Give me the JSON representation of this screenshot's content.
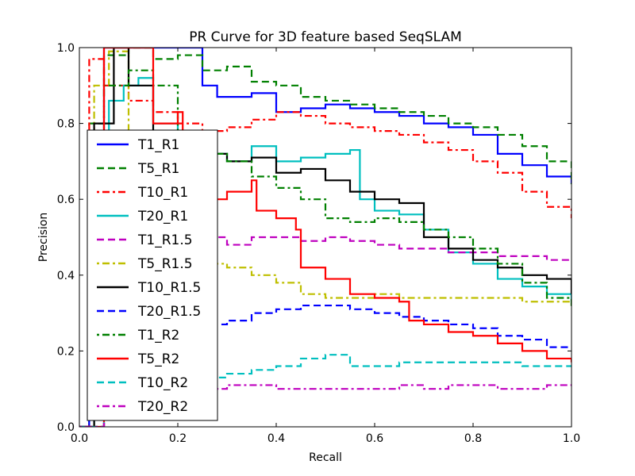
{
  "chart_data": {
    "type": "line",
    "title": "PR Curve for 3D feature based SeqSLAM",
    "xlabel": "Recall",
    "ylabel": "Precision",
    "xlim": [
      0,
      1
    ],
    "ylim": [
      0,
      1
    ],
    "xticks": [
      "0.0",
      "0.2",
      "0.4",
      "0.6",
      "0.8",
      "1.0"
    ],
    "yticks": [
      "0.0",
      "0.2",
      "0.4",
      "0.6",
      "0.8",
      "1.0"
    ],
    "grid": false,
    "legend_position": "left",
    "series": [
      {
        "name": "T1_R1",
        "color": "#0000ff",
        "dash": "solid",
        "x": [
          0.0,
          0.02,
          0.05,
          0.08,
          0.12,
          0.18,
          0.2,
          0.22,
          0.25,
          0.28,
          0.3,
          0.35,
          0.4,
          0.45,
          0.5,
          0.55,
          0.6,
          0.65,
          0.7,
          0.75,
          0.8,
          0.85,
          0.9,
          0.95,
          1.0
        ],
        "y": [
          0.0,
          0.7,
          1.0,
          1.0,
          1.0,
          1.0,
          1.0,
          1.0,
          0.9,
          0.87,
          0.87,
          0.88,
          0.83,
          0.84,
          0.85,
          0.84,
          0.83,
          0.82,
          0.8,
          0.79,
          0.77,
          0.72,
          0.69,
          0.66,
          0.64
        ]
      },
      {
        "name": "T5_R1",
        "color": "#008000",
        "dash": "dashed",
        "x": [
          0.0,
          0.02,
          0.05,
          0.1,
          0.15,
          0.2,
          0.25,
          0.3,
          0.35,
          0.4,
          0.45,
          0.5,
          0.55,
          0.6,
          0.65,
          0.7,
          0.75,
          0.8,
          0.85,
          0.9,
          0.95,
          1.0
        ],
        "y": [
          0.0,
          0.8,
          0.98,
          1.0,
          0.97,
          0.98,
          0.94,
          0.95,
          0.91,
          0.9,
          0.87,
          0.86,
          0.85,
          0.84,
          0.83,
          0.82,
          0.8,
          0.79,
          0.77,
          0.74,
          0.7,
          0.64
        ]
      },
      {
        "name": "T10_R1",
        "color": "#ff0000",
        "dash": "dashdot",
        "x": [
          0.0,
          0.02,
          0.05,
          0.1,
          0.15,
          0.2,
          0.25,
          0.3,
          0.35,
          0.4,
          0.45,
          0.5,
          0.55,
          0.6,
          0.65,
          0.7,
          0.75,
          0.8,
          0.85,
          0.9,
          0.95,
          1.0
        ],
        "y": [
          0.0,
          0.97,
          0.9,
          0.86,
          0.83,
          0.8,
          0.78,
          0.79,
          0.81,
          0.83,
          0.82,
          0.8,
          0.79,
          0.78,
          0.77,
          0.75,
          0.73,
          0.7,
          0.67,
          0.62,
          0.58,
          0.55
        ]
      },
      {
        "name": "T20_R1",
        "color": "#00bfbf",
        "dash": "solid",
        "x": [
          0.0,
          0.03,
          0.06,
          0.09,
          0.12,
          0.15,
          0.2,
          0.25,
          0.3,
          0.35,
          0.4,
          0.45,
          0.5,
          0.55,
          0.57,
          0.6,
          0.65,
          0.7,
          0.75,
          0.8,
          0.85,
          0.9,
          0.95,
          1.0
        ],
        "y": [
          0.0,
          0.7,
          0.86,
          0.9,
          0.92,
          0.8,
          0.76,
          0.72,
          0.7,
          0.74,
          0.7,
          0.71,
          0.72,
          0.73,
          0.6,
          0.57,
          0.56,
          0.52,
          0.46,
          0.43,
          0.39,
          0.37,
          0.35,
          0.33
        ]
      },
      {
        "name": "T1_R1.5",
        "color": "#bf00bf",
        "dash": "dashed",
        "x": [
          0.0,
          0.05,
          0.1,
          0.15,
          0.2,
          0.25,
          0.3,
          0.35,
          0.4,
          0.45,
          0.5,
          0.55,
          0.6,
          0.65,
          0.7,
          0.75,
          0.8,
          0.85,
          0.9,
          0.95,
          1.0
        ],
        "y": [
          0.0,
          0.55,
          0.54,
          0.52,
          0.51,
          0.5,
          0.48,
          0.5,
          0.5,
          0.49,
          0.5,
          0.49,
          0.48,
          0.47,
          0.47,
          0.46,
          0.46,
          0.45,
          0.45,
          0.44,
          0.44
        ]
      },
      {
        "name": "T5_R1.5",
        "color": "#bfbf00",
        "dash": "dashdot",
        "x": [
          0.0,
          0.03,
          0.06,
          0.1,
          0.15,
          0.2,
          0.25,
          0.3,
          0.35,
          0.4,
          0.45,
          0.5,
          0.55,
          0.6,
          0.65,
          0.7,
          0.75,
          0.8,
          0.85,
          0.9,
          0.95,
          1.0
        ],
        "y": [
          0.0,
          0.9,
          0.99,
          0.6,
          0.5,
          0.45,
          0.43,
          0.42,
          0.4,
          0.38,
          0.35,
          0.34,
          0.34,
          0.35,
          0.34,
          0.34,
          0.34,
          0.34,
          0.34,
          0.33,
          0.33,
          0.32
        ]
      },
      {
        "name": "T10_R1.5",
        "color": "#000000",
        "dash": "solid",
        "x": [
          0.0,
          0.03,
          0.07,
          0.1,
          0.15,
          0.2,
          0.25,
          0.3,
          0.35,
          0.4,
          0.45,
          0.5,
          0.55,
          0.6,
          0.65,
          0.7,
          0.75,
          0.8,
          0.85,
          0.9,
          0.95,
          1.0
        ],
        "y": [
          0.0,
          0.8,
          1.0,
          0.9,
          0.78,
          0.74,
          0.72,
          0.7,
          0.71,
          0.67,
          0.68,
          0.65,
          0.62,
          0.6,
          0.59,
          0.5,
          0.47,
          0.44,
          0.42,
          0.4,
          0.39,
          0.35
        ]
      },
      {
        "name": "T20_R1.5",
        "color": "#0000ff",
        "dash": "dashed",
        "x": [
          0.0,
          0.02,
          0.05,
          0.1,
          0.15,
          0.2,
          0.25,
          0.3,
          0.35,
          0.4,
          0.45,
          0.5,
          0.55,
          0.6,
          0.65,
          0.7,
          0.75,
          0.8,
          0.85,
          0.9,
          0.95,
          1.0
        ],
        "y": [
          0.0,
          0.17,
          0.2,
          0.22,
          0.24,
          0.25,
          0.27,
          0.28,
          0.3,
          0.31,
          0.32,
          0.32,
          0.31,
          0.3,
          0.29,
          0.28,
          0.27,
          0.26,
          0.24,
          0.23,
          0.21,
          0.21
        ]
      },
      {
        "name": "T1_R2",
        "color": "#008000",
        "dash": "dashdot",
        "x": [
          0.0,
          0.05,
          0.1,
          0.15,
          0.2,
          0.25,
          0.3,
          0.35,
          0.4,
          0.45,
          0.5,
          0.55,
          0.6,
          0.65,
          0.7,
          0.75,
          0.8,
          0.85,
          0.9,
          0.95,
          1.0
        ],
        "y": [
          0.0,
          0.9,
          0.94,
          0.9,
          0.75,
          0.72,
          0.7,
          0.66,
          0.63,
          0.6,
          0.55,
          0.54,
          0.55,
          0.54,
          0.52,
          0.5,
          0.47,
          0.43,
          0.38,
          0.34,
          0.31
        ]
      },
      {
        "name": "T5_R2",
        "color": "#ff0000",
        "dash": "solid",
        "x": [
          0.0,
          0.05,
          0.1,
          0.15,
          0.2,
          0.21,
          0.25,
          0.3,
          0.35,
          0.36,
          0.4,
          0.44,
          0.45,
          0.5,
          0.55,
          0.6,
          0.65,
          0.67,
          0.7,
          0.75,
          0.8,
          0.85,
          0.9,
          0.95,
          1.0
        ],
        "y": [
          0.0,
          1.0,
          1.0,
          0.8,
          0.83,
          0.7,
          0.6,
          0.62,
          0.65,
          0.57,
          0.55,
          0.52,
          0.42,
          0.39,
          0.35,
          0.34,
          0.33,
          0.28,
          0.27,
          0.25,
          0.24,
          0.22,
          0.2,
          0.18,
          0.17
        ]
      },
      {
        "name": "T10_R2",
        "color": "#00bfbf",
        "dash": "dashed",
        "x": [
          0.0,
          0.05,
          0.1,
          0.15,
          0.2,
          0.25,
          0.3,
          0.35,
          0.4,
          0.45,
          0.5,
          0.55,
          0.6,
          0.65,
          0.7,
          0.75,
          0.8,
          0.85,
          0.9,
          0.95,
          1.0
        ],
        "y": [
          0.0,
          0.06,
          0.1,
          0.12,
          0.13,
          0.13,
          0.14,
          0.15,
          0.16,
          0.18,
          0.19,
          0.16,
          0.16,
          0.17,
          0.17,
          0.17,
          0.17,
          0.17,
          0.16,
          0.16,
          0.16
        ]
      },
      {
        "name": "T20_R2",
        "color": "#bf00bf",
        "dash": "dashdot",
        "x": [
          0.0,
          0.05,
          0.1,
          0.15,
          0.2,
          0.25,
          0.3,
          0.35,
          0.4,
          0.45,
          0.5,
          0.55,
          0.6,
          0.65,
          0.7,
          0.75,
          0.8,
          0.85,
          0.9,
          0.95,
          1.0
        ],
        "y": [
          0.0,
          0.03,
          0.06,
          0.08,
          0.09,
          0.1,
          0.11,
          0.11,
          0.1,
          0.1,
          0.1,
          0.1,
          0.1,
          0.11,
          0.1,
          0.11,
          0.11,
          0.1,
          0.1,
          0.11,
          0.11
        ]
      }
    ]
  }
}
